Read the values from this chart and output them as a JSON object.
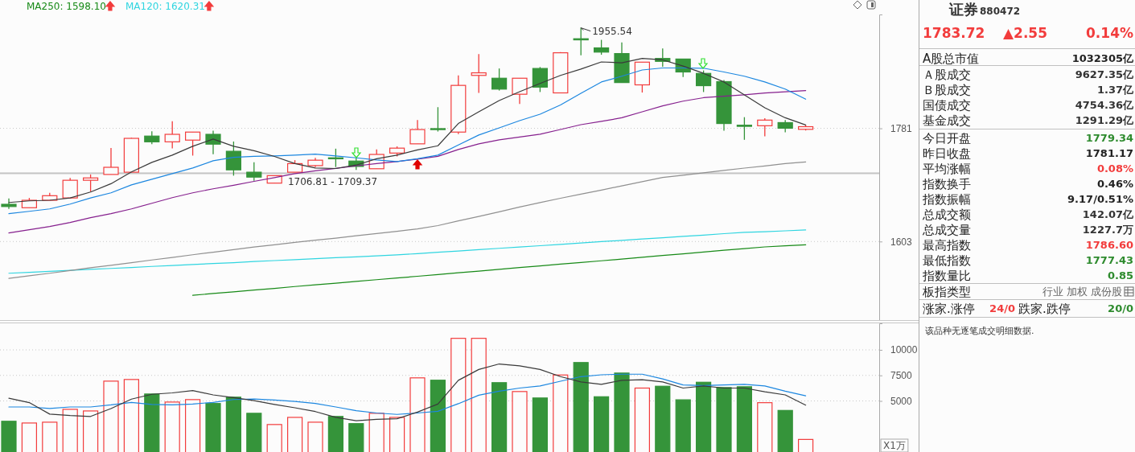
{
  "chart_data": [
    {
      "type": "candlestick",
      "categories": [
        null,
        null,
        null,
        null,
        null,
        null,
        null,
        null,
        null,
        null,
        null,
        null,
        null,
        null,
        null,
        null,
        null,
        null,
        null,
        null,
        null,
        null,
        null,
        null,
        null,
        null,
        null,
        null,
        null,
        null,
        null,
        null,
        null,
        null,
        null,
        null,
        null,
        null,
        null,
        null
      ],
      "ohlc": [
        [
          1659.5,
          1668.5,
          1652.4,
          1656.0
        ],
        [
          1654.2,
          1669.3,
          1654.2,
          1665.7
        ],
        [
          1665.7,
          1677.3,
          1665.7,
          1672.8
        ],
        [
          1669.3,
          1700.7,
          1669.3,
          1697.0
        ],
        [
          1697.0,
          1706.2,
          1679.0,
          1700.7
        ],
        [
          1706.2,
          1748.9,
          1706.2,
          1717.6
        ],
        [
          1709.8,
          1765.4,
          1709.8,
          1764.5
        ],
        [
          1768.2,
          1776.2,
          1755.0,
          1758.8
        ],
        [
          1758.8,
          1792.9,
          1748.1,
          1771.1
        ],
        [
          1761.6,
          1774.8,
          1736.4,
          1774.8
        ],
        [
          1771.1,
          1777.2,
          1738.7,
          1755.0
        ],
        [
          1743.4,
          1759.3,
          1704.3,
          1713.5
        ],
        [
          1709.8,
          1725.8,
          1696.2,
          1702.0
        ],
        [
          1692.5,
          1704.3,
          1692.5,
          1704.3
        ],
        [
          1709.8,
          1729.0,
          1709.8,
          1723.5
        ],
        [
          1720.3,
          1732.8,
          1718.0,
          1729.0
        ],
        [
          1732.8,
          1747.6,
          1718.0,
          1731.3
        ],
        [
          1727.6,
          1732.8,
          1713.5,
          1719.0
        ],
        [
          1715.3,
          1746.6,
          1715.3,
          1738.3
        ],
        [
          1740.5,
          1751.3,
          1735.1,
          1748.5
        ],
        [
          1755.5,
          1794.7,
          1755.5,
          1779.0
        ],
        [
          1780.5,
          1816.4,
          1775.7,
          1779.5
        ],
        [
          1774.8,
          1870.9,
          1771.5,
          1853.6
        ],
        [
          1870.9,
          1908.3,
          1840.7,
          1875.4
        ],
        [
          1866.0,
          1883.0,
          1844.7,
          1847.2
        ],
        [
          1838.4,
          1866.0,
          1821.7,
          1866.0
        ],
        [
          1883.0,
          1885.5,
          1842.2,
          1850.6
        ],
        [
          1840.7,
          1911.9,
          1840.7,
          1910.7
        ],
        [
          1935.8,
          1955.54,
          1906.2,
          1933.8
        ],
        [
          1919.4,
          1933.8,
          1907.2,
          1911.9
        ],
        [
          1909.3,
          1929.2,
          1858.5,
          1858.5
        ],
        [
          1854.5,
          1894.1,
          1841.3,
          1894.1
        ],
        [
          1900.6,
          1918.4,
          1885.9,
          1895.5
        ],
        [
          1899.6,
          1899.6,
          1868.0,
          1876.9
        ],
        [
          1874.4,
          1879.5,
          1842.2,
          1853.1
        ],
        [
          1860.1,
          1863.0,
          1777.2,
          1789.0
        ],
        [
          1786.2,
          1799.6,
          1762.1,
          1784.3
        ],
        [
          1785.3,
          1797.7,
          1767.8,
          1794.7
        ],
        [
          1790.5,
          1794.7,
          1774.4,
          1781.17
        ],
        [
          1779.34,
          1786.6,
          1777.43,
          1783.72
        ]
      ],
      "colors": [
        "#35943a",
        "#f23c3c",
        "#f23c3c",
        "#f23c3c",
        "#f23c3c",
        "#f23c3c",
        "#f23c3c",
        "#35943a",
        "#f23c3c",
        "#f23c3c",
        "#35943a",
        "#35943a",
        "#35943a",
        "#f23c3c",
        "#f23c3c",
        "#f23c3c",
        "#35943a",
        "#35943a",
        "#f23c3c",
        "#f23c3c",
        "#f23c3c",
        "#35943a",
        "#f23c3c",
        "#f23c3c",
        "#35943a",
        "#f23c3c",
        "#35943a",
        "#f23c3c",
        "#35943a",
        "#35943a",
        "#35943a",
        "#f23c3c",
        "#35943a",
        "#35943a",
        "#35943a",
        "#35943a",
        "#35943a",
        "#f23c3c",
        "#35943a",
        "#f23c3c"
      ],
      "series": [
        {
          "type": "line",
          "color": "#178a17",
          "name": "MA250: 1598.10",
          "values": [
            null,
            null,
            null,
            null,
            null,
            null,
            null,
            null,
            null,
            1524.8,
            1527.3,
            1529.7,
            1532.2,
            1534.6,
            1537.3,
            1539.7,
            1542.0,
            1544.6,
            1547.1,
            1549.5,
            1552.0,
            1554.5,
            1557.0,
            1559.5,
            1562.0,
            1564.6,
            1567.0,
            1569.6,
            1572.1,
            1574.5,
            1577.1,
            1579.7,
            1582.3,
            1584.8,
            1587.3,
            1590.0,
            1592.5,
            1595.0,
            1596.7,
            1598.1
          ]
        },
        {
          "type": "line",
          "color": "#2fd5e0",
          "name": "MA120: 1620.31",
          "values": [
            1556.4,
            1557.8,
            1559.2,
            1560.6,
            1562.1,
            1563.4,
            1564.8,
            1566.3,
            1567.6,
            1569.1,
            1570.5,
            1571.8,
            1573.4,
            1574.8,
            1576.2,
            1577.6,
            1579.0,
            1580.4,
            1581.8,
            1583.3,
            1585.0,
            1587.0,
            1588.9,
            1590.9,
            1592.9,
            1594.9,
            1596.8,
            1598.8,
            1600.7,
            1602.8,
            1604.7,
            1606.7,
            1608.7,
            1610.7,
            1612.6,
            1614.8,
            1616.7,
            1617.7,
            1619.0,
            1620.31
          ]
        },
        {
          "type": "line",
          "color": "#909090",
          "values": [
            1549.0,
            1552.7,
            1556.4,
            1560.3,
            1564.5,
            1567.9,
            1571.8,
            1575.7,
            1579.5,
            1583.4,
            1587.2,
            1590.9,
            1594.8,
            1598.1,
            1601.7,
            1605.0,
            1608.1,
            1611.6,
            1615.0,
            1618.3,
            1621.9,
            1626.9,
            1634.0,
            1640.9,
            1647.9,
            1655.3,
            1662.1,
            1668.8,
            1675.2,
            1681.6,
            1688.2,
            1694.8,
            1701.4,
            1705.0,
            1708.7,
            1712.7,
            1716.3,
            1719.7,
            1723.5,
            1726.2
          ]
        },
        {
          "type": "line",
          "color": "#86208e",
          "values": [
            1615.9,
            1620.7,
            1625.5,
            1631.6,
            1638.9,
            1645.1,
            1652.4,
            1661.1,
            1669.8,
            1677.3,
            1683.6,
            1689.2,
            1695.3,
            1701.2,
            1707.6,
            1712.1,
            1715.9,
            1719.9,
            1723.6,
            1726.8,
            1730.7,
            1735.2,
            1746.3,
            1755.4,
            1762.0,
            1766.6,
            1771.2,
            1779.1,
            1787.1,
            1792.5,
            1798.6,
            1808.6,
            1818.7,
            1826.6,
            1832.5,
            1835.1,
            1837.3,
            1840.6,
            1842.7,
            1844.7
          ]
        },
        {
          "type": "line",
          "color": "#1c87e0",
          "values": [
            1645.1,
            1648.7,
            1652.4,
            1659.8,
            1669.3,
            1677.3,
            1689.8,
            1698.7,
            1707.6,
            1716.5,
            1728.1,
            1733.7,
            1735.1,
            1735.9,
            1737.2,
            1738.7,
            1735.9,
            1732.8,
            1729.4,
            1726.8,
            1731.3,
            1737.2,
            1753.6,
            1770.0,
            1781.8,
            1793.8,
            1804.5,
            1820.2,
            1839.9,
            1859.5,
            1869.5,
            1880.4,
            1883.9,
            1883.9,
            1883.5,
            1876.9,
            1869.5,
            1859.5,
            1847.2,
            1830.0
          ]
        },
        {
          "type": "line",
          "color": "#3a3a3a",
          "values": [
            1662.3,
            1664.8,
            1665.7,
            1669.3,
            1678.5,
            1691.6,
            1710.2,
            1725.5,
            1737.2,
            1751.5,
            1763.3,
            1751.5,
            1744.3,
            1735.1,
            1723.5,
            1716.5,
            1715.7,
            1721.2,
            1731.3,
            1737.2,
            1745.7,
            1752.3,
            1789.0,
            1808.6,
            1827.6,
            1842.7,
            1857.0,
            1870.9,
            1882.0,
            1894.5,
            1893.0,
            1900.6,
            1898.1,
            1887.2,
            1874.5,
            1859.5,
            1837.3,
            1815.3,
            1798.6,
            1786.6
          ]
        }
      ],
      "ylim": [
        1490,
        1980
      ],
      "yticks": [
        1781,
        1603
      ],
      "log": true,
      "grid": "y",
      "legend": "top left",
      "annotations": [
        "1955.54"
      ],
      "bands": [
        {
          "axis": "y",
          "from": 1706.81,
          "to": 1709.37,
          "label": "1706.81 - 1709.37",
          "color": "#c4c4c4"
        }
      ]
    },
    {
      "type": "bar",
      "categories": [
        null,
        null,
        null,
        null,
        null,
        null,
        null,
        null,
        null,
        null,
        null,
        null,
        null,
        null,
        null,
        null,
        null,
        null,
        null,
        null,
        null,
        null,
        null,
        null,
        null,
        null,
        null,
        null,
        null,
        null,
        null,
        null,
        null,
        null,
        null,
        null,
        null,
        null,
        null,
        null
      ],
      "series": [
        {
          "type": "bar",
          "colors": [
            "#35943a",
            "#f23c3c",
            "#f23c3c",
            "#f23c3c",
            "#f23c3c",
            "#f23c3c",
            "#f23c3c",
            "#35943a",
            "#f23c3c",
            "#f23c3c",
            "#35943a",
            "#35943a",
            "#35943a",
            "#f23c3c",
            "#f23c3c",
            "#f23c3c",
            "#35943a",
            "#35943a",
            "#f23c3c",
            "#f23c3c",
            "#f23c3c",
            "#35943a",
            "#f23c3c",
            "#f23c3c",
            "#35943a",
            "#f23c3c",
            "#35943a",
            "#f23c3c",
            "#35943a",
            "#35943a",
            "#35943a",
            "#f23c3c",
            "#35943a",
            "#35943a",
            "#35943a",
            "#35943a",
            "#35943a",
            "#f23c3c",
            "#35943a",
            "#f23c3c"
          ],
          "values": [
            3010,
            2840,
            2920,
            4180,
            4020,
            6940,
            7100,
            5680,
            4890,
            5130,
            4750,
            5370,
            3790,
            2690,
            3390,
            2920,
            3480,
            2780,
            3790,
            3390,
            7260,
            7030,
            11130,
            11130,
            6790,
            5920,
            5290,
            7540,
            8760,
            5410,
            7730,
            6260,
            6440,
            5110,
            6830,
            6310,
            6390,
            4830,
            4070,
            1230
          ]
        },
        {
          "type": "line",
          "color": "#1c87e0",
          "values": [
            4410,
            4410,
            4270,
            4410,
            4410,
            4610,
            4860,
            4660,
            4610,
            4700,
            4860,
            5140,
            5180,
            5090,
            4950,
            4750,
            4410,
            4050,
            3820,
            3680,
            3820,
            3990,
            4730,
            5560,
            5960,
            6260,
            6470,
            6930,
            7380,
            7560,
            7620,
            7620,
            7160,
            6560,
            6500,
            6560,
            6630,
            6470,
            5960,
            5500
          ]
        },
        {
          "type": "line",
          "color": "#3a3a3a",
          "values": [
            5260,
            4840,
            3710,
            3570,
            3480,
            4250,
            5180,
            5650,
            5790,
            6020,
            5590,
            5320,
            5030,
            4660,
            4330,
            3960,
            3400,
            3060,
            3200,
            3260,
            3910,
            4700,
            7020,
            8080,
            8620,
            8440,
            8080,
            7380,
            6860,
            6630,
            7020,
            7080,
            6860,
            6260,
            6470,
            6260,
            6260,
            5890,
            5590,
            4590
          ]
        }
      ],
      "ylim": [
        0,
        12600
      ],
      "yticks": [
        5000,
        7500,
        10000
      ],
      "grid": "y",
      "ylabel": "X1万"
    },
    {
      "type": "other",
      "title": "证券",
      "subtitle": "880472",
      "annotations": [
        "1783.72",
        "▲2.55",
        "0.14%",
        "该品种无逐笔成交明细数据."
      ],
      "categories": [
        "A股总市值",
        "Ａ股成交",
        "Ｂ股成交",
        "国债成交",
        "基金成交",
        "今日开盘",
        "昨日收盘",
        "平均涨幅",
        "指数换手",
        "指数振幅",
        "总成交额",
        "总成交量",
        "最高指数",
        "最低指数",
        "指数量比",
        "板指类型",
        "涨家.涨停",
        "跌家.跌停"
      ],
      "value_labels": [
        "1032305亿",
        "9627.35亿",
        "1.37亿",
        "4754.36亿",
        "1291.29亿",
        "1779.34",
        "1781.17",
        "0.08%",
        "0.46%",
        "9.17/0.51%",
        "142.07亿",
        "1227.7万",
        "1786.60",
        "1777.43",
        "0.85",
        "行业 加权 成份股",
        "24/0",
        "20/0"
      ],
      "colors": [
        "#222222",
        "#333333",
        "#333333",
        "#333333",
        "#333333",
        "#2e8b2e",
        "#222222",
        "#f23c3c",
        "#222222",
        "#222222",
        "#333333",
        "#333333",
        "#f23c3c",
        "#2e8b2e",
        "#2e8b2e",
        "#666666",
        "#f23c3c",
        "#2e8b2e"
      ]
    }
  ]
}
